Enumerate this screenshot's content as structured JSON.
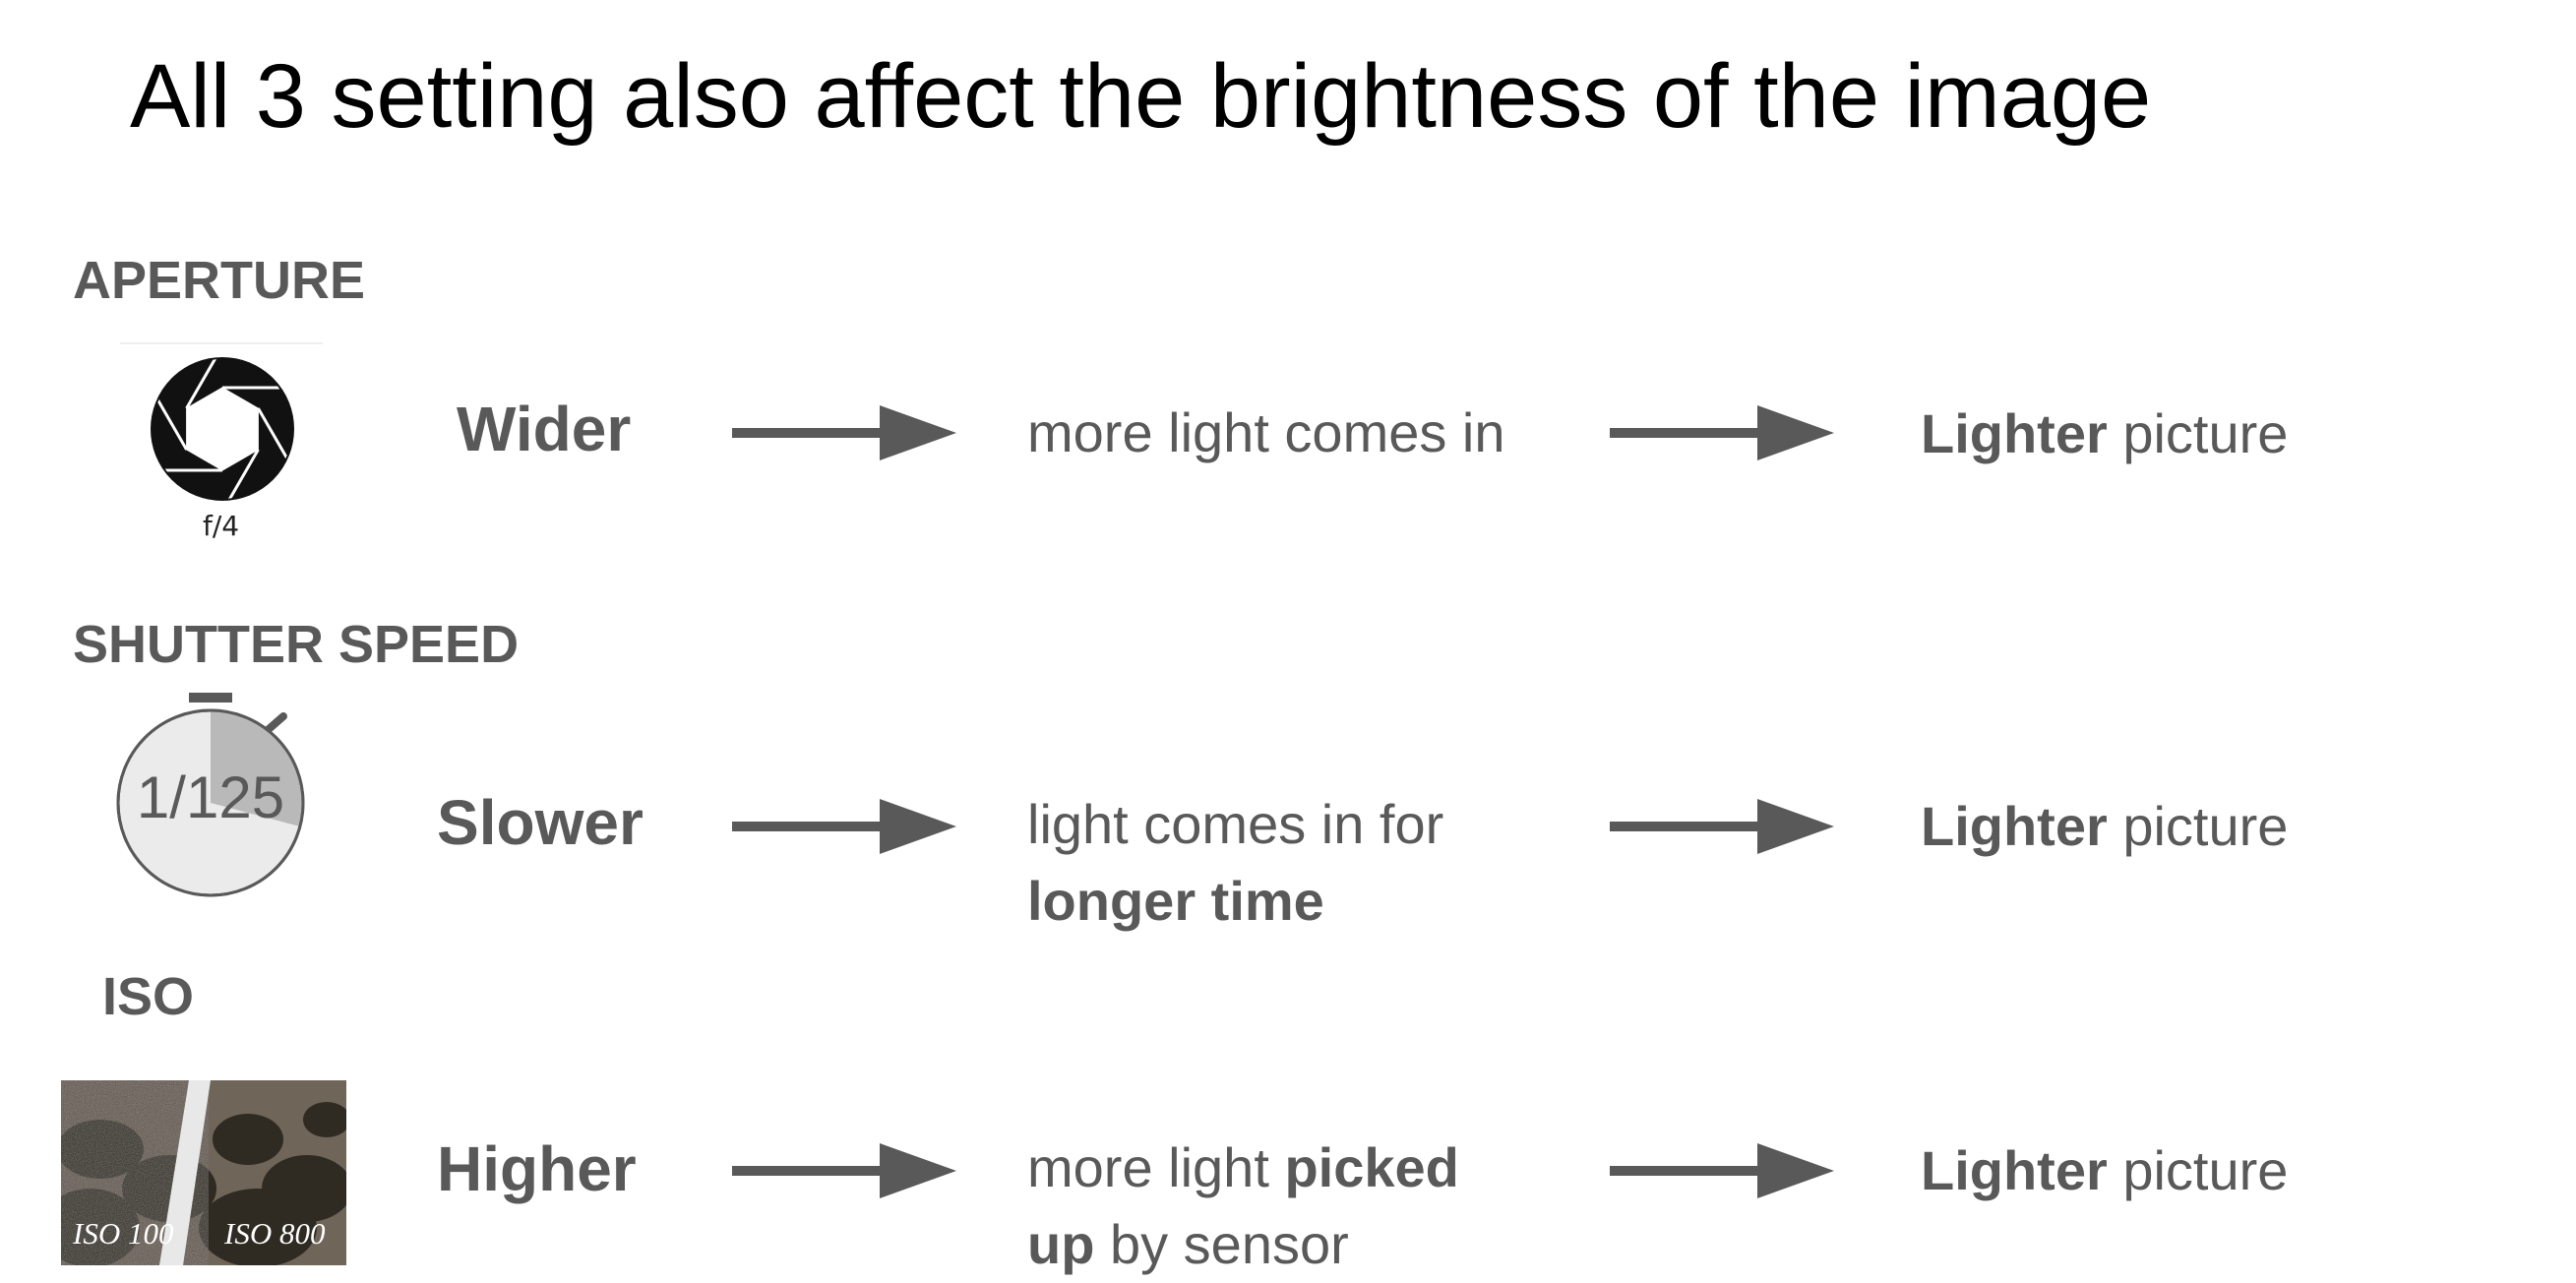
{
  "slide": {
    "title": "All 3 setting also affect the brightness of the image"
  },
  "rows": [
    {
      "section": "APERTURE",
      "icon_caption": "f/4",
      "setting": "Wider",
      "desc_line1_a": "more light comes in",
      "result_bold": "Lighter",
      "result_rest": " picture"
    },
    {
      "section": "SHUTTER SPEED",
      "icon_caption": "1/125",
      "setting": "Slower",
      "desc_line1_a": "light comes in for",
      "desc_line2_b": "longer time",
      "result_bold": "Lighter",
      "result_rest": " picture"
    },
    {
      "section": "ISO",
      "iso_low": "ISO 100",
      "iso_high": "ISO 800",
      "setting": "Higher",
      "desc_line1_a": "more light ",
      "desc_line1_b": "picked",
      "desc_line2_b": "up",
      "desc_line2_c": " by sensor",
      "result_bold": "Lighter",
      "result_rest": " picture"
    }
  ],
  "colors": {
    "text_gray": "#595959",
    "arrow_gray": "#595959",
    "title": "#000000"
  },
  "icons": {
    "aperture": "aperture-icon",
    "shutter": "stopwatch-icon",
    "iso": "iso-noise-comparison-icon",
    "arrow": "right-arrow-icon"
  }
}
